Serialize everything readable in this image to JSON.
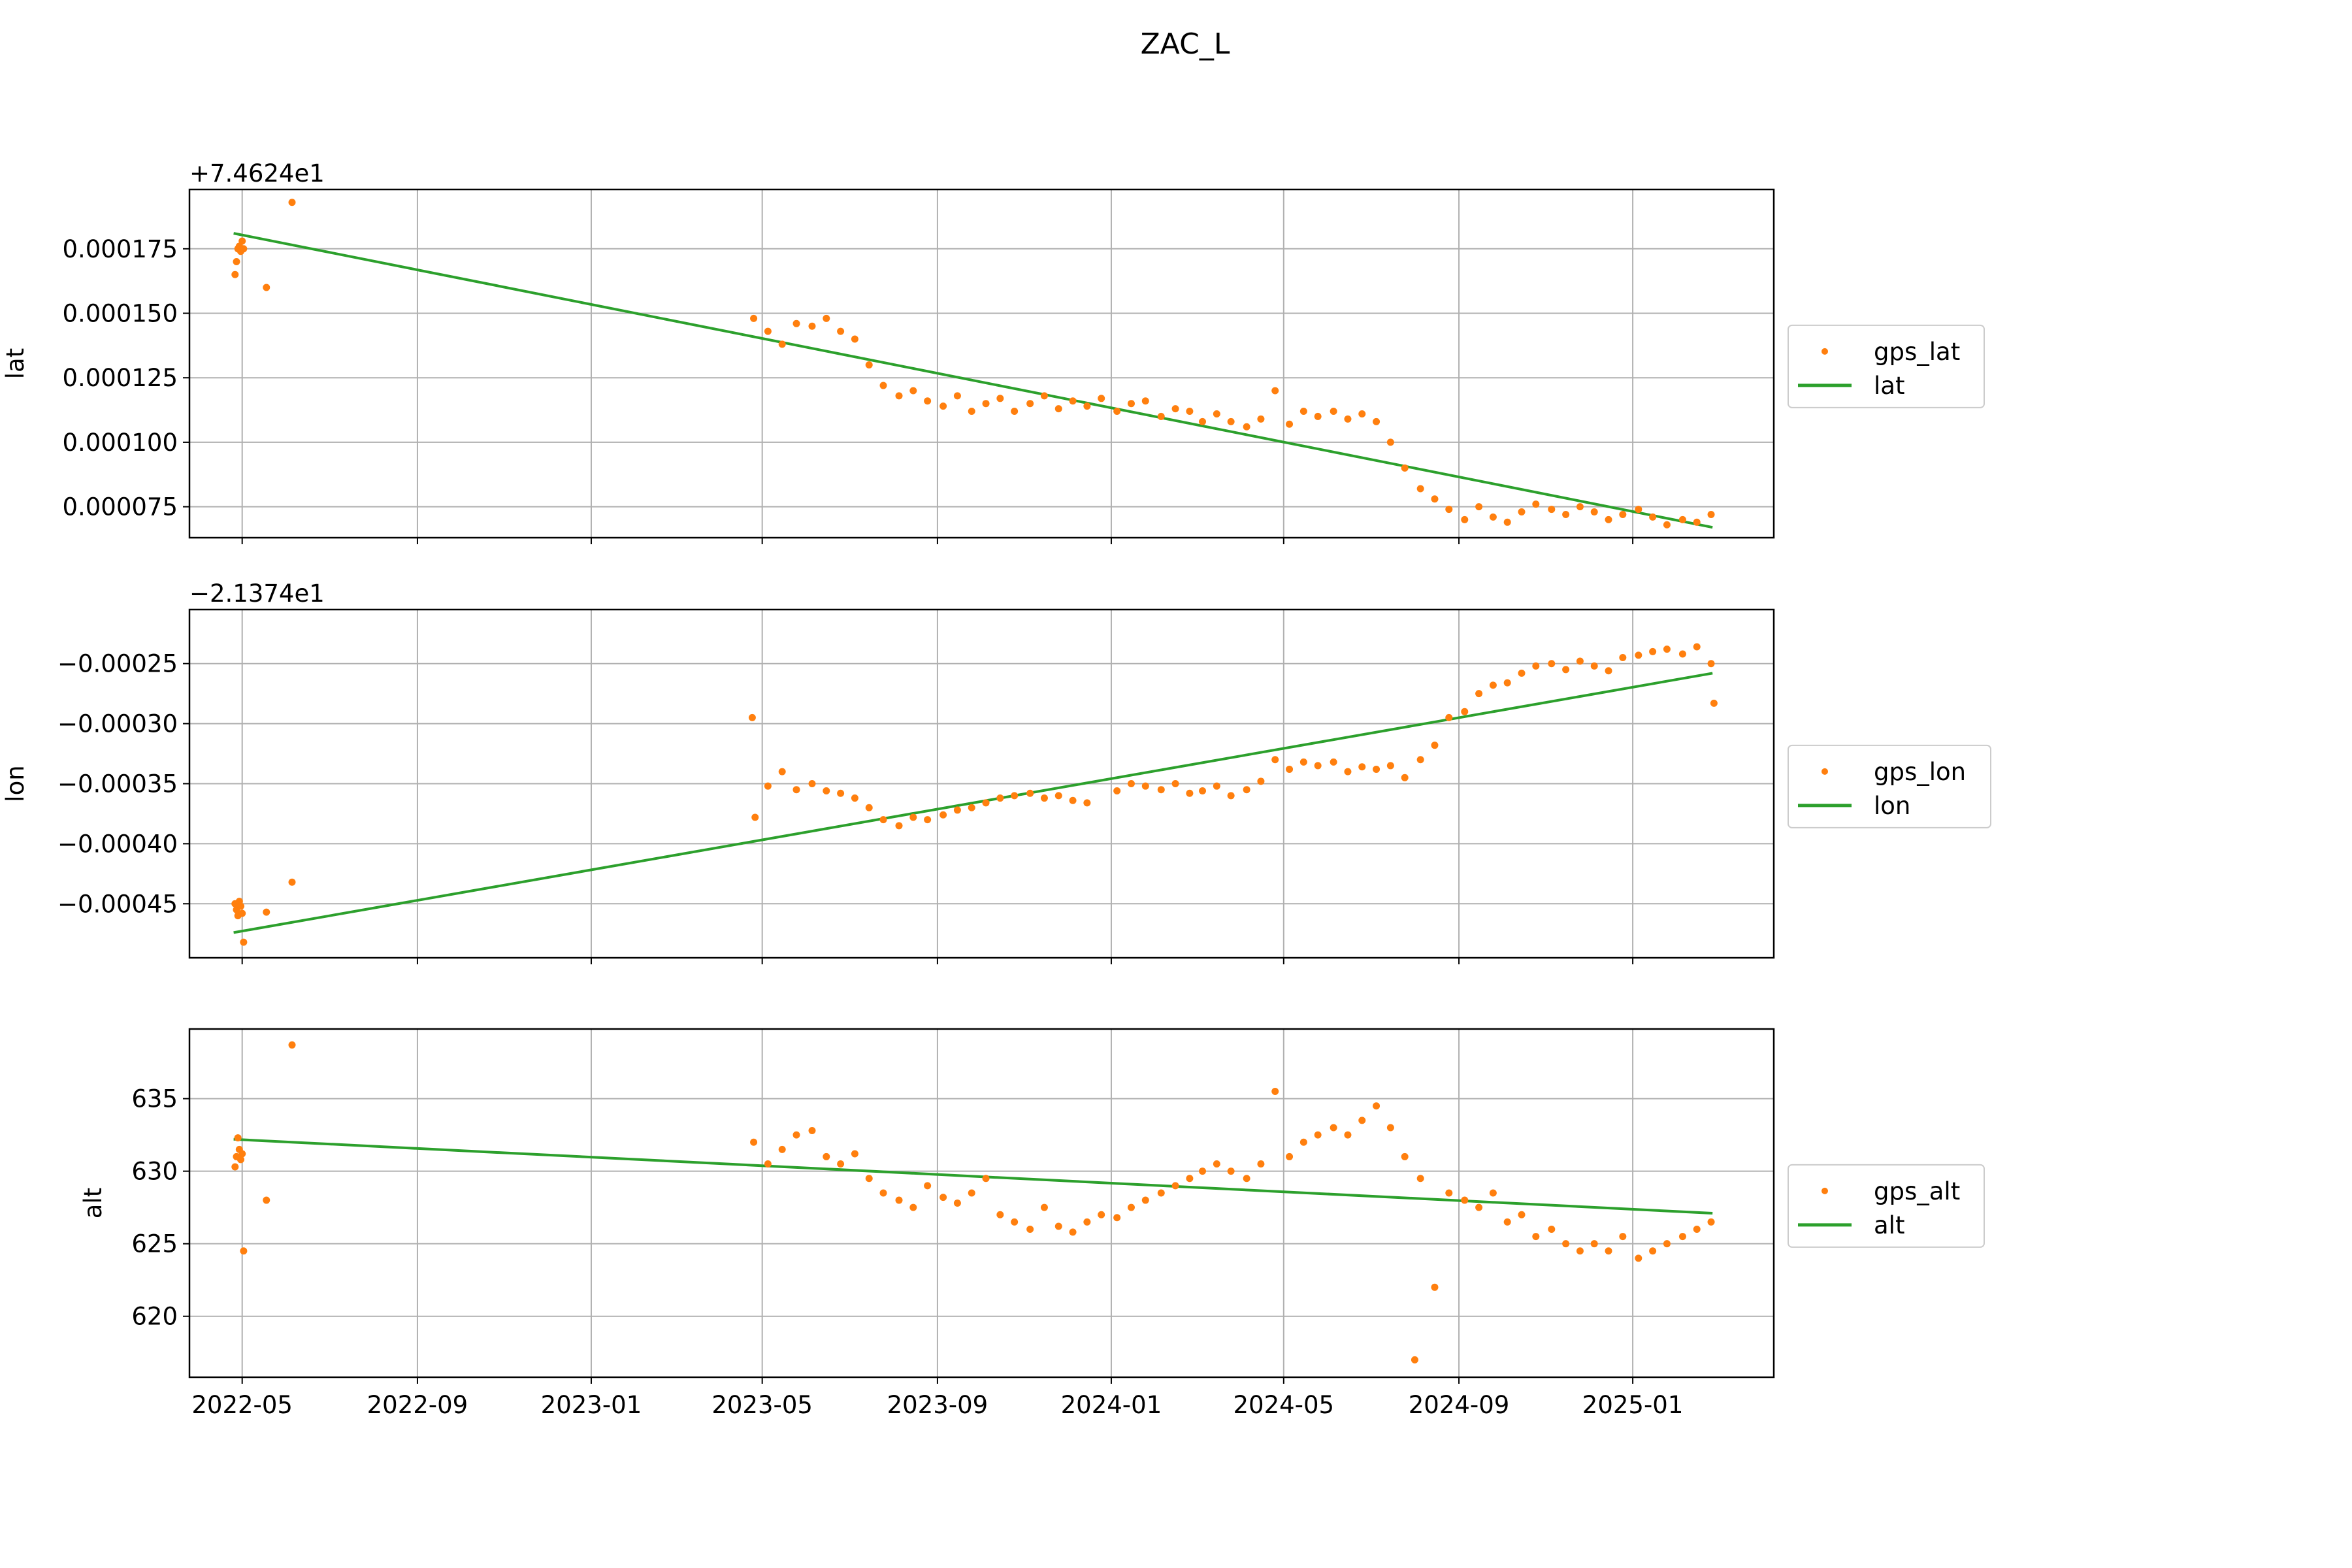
{
  "figure_title": "ZAC_L",
  "colors": {
    "points": "#ff7f0e",
    "trend": "#2ca02c",
    "grid": "#b0b0b0"
  },
  "x_axis": {
    "type": "date",
    "range": [
      "2022-03-25",
      "2025-04-10"
    ],
    "tick_labels": [
      "2022-05",
      "2022-09",
      "2023-01",
      "2023-05",
      "2023-09",
      "2024-01",
      "2024-05",
      "2024-09",
      "2025-01"
    ],
    "tick_dates": [
      "2022-05-01",
      "2022-09-01",
      "2023-01-01",
      "2023-05-01",
      "2023-09-01",
      "2024-01-01",
      "2024-05-01",
      "2024-09-01",
      "2025-01-01"
    ]
  },
  "chart_data": [
    {
      "type": "scatter",
      "ylabel": "lat",
      "offset_text": "+7.4624e1",
      "ylim": [
        6.3e-05,
        0.000198
      ],
      "y_ticks": [
        7.5e-05,
        0.0001,
        0.000125,
        0.00015,
        0.000175
      ],
      "y_tick_labels": [
        "0.000075",
        "0.000100",
        "0.000125",
        "0.000150",
        "0.000175"
      ],
      "legend": {
        "placement": "right",
        "points_label": "gps_lat",
        "line_label": "lat"
      },
      "points": [
        [
          "2022-04-26",
          0.000165
        ],
        [
          "2022-04-27",
          0.00017
        ],
        [
          "2022-04-28",
          0.000175
        ],
        [
          "2022-04-29",
          0.000176
        ],
        [
          "2022-04-30",
          0.000174
        ],
        [
          "2022-05-01",
          0.000178
        ],
        [
          "2022-05-02",
          0.000175
        ],
        [
          "2022-05-18",
          0.00016
        ],
        [
          "2022-06-05",
          0.000193
        ],
        [
          "2023-04-25",
          0.000148
        ],
        [
          "2023-05-05",
          0.000143
        ],
        [
          "2023-05-15",
          0.000138
        ],
        [
          "2023-05-25",
          0.000146
        ],
        [
          "2023-06-05",
          0.000145
        ],
        [
          "2023-06-15",
          0.000148
        ],
        [
          "2023-06-25",
          0.000143
        ],
        [
          "2023-07-05",
          0.00014
        ],
        [
          "2023-07-15",
          0.00013
        ],
        [
          "2023-07-25",
          0.000122
        ],
        [
          "2023-08-05",
          0.000118
        ],
        [
          "2023-08-15",
          0.00012
        ],
        [
          "2023-08-25",
          0.000116
        ],
        [
          "2023-09-05",
          0.000114
        ],
        [
          "2023-09-15",
          0.000118
        ],
        [
          "2023-09-25",
          0.000112
        ],
        [
          "2023-10-05",
          0.000115
        ],
        [
          "2023-10-15",
          0.000117
        ],
        [
          "2023-10-25",
          0.000112
        ],
        [
          "2023-11-05",
          0.000115
        ],
        [
          "2023-11-15",
          0.000118
        ],
        [
          "2023-11-25",
          0.000113
        ],
        [
          "2023-12-05",
          0.000116
        ],
        [
          "2023-12-15",
          0.000114
        ],
        [
          "2023-12-25",
          0.000117
        ],
        [
          "2024-01-05",
          0.000112
        ],
        [
          "2024-01-15",
          0.000115
        ],
        [
          "2024-01-25",
          0.000116
        ],
        [
          "2024-02-05",
          0.00011
        ],
        [
          "2024-02-15",
          0.000113
        ],
        [
          "2024-02-25",
          0.000112
        ],
        [
          "2024-03-05",
          0.000108
        ],
        [
          "2024-03-15",
          0.000111
        ],
        [
          "2024-03-25",
          0.000108
        ],
        [
          "2024-04-05",
          0.000106
        ],
        [
          "2024-04-15",
          0.000109
        ],
        [
          "2024-04-25",
          0.00012
        ],
        [
          "2024-05-05",
          0.000107
        ],
        [
          "2024-05-15",
          0.000112
        ],
        [
          "2024-05-25",
          0.00011
        ],
        [
          "2024-06-05",
          0.000112
        ],
        [
          "2024-06-15",
          0.000109
        ],
        [
          "2024-06-25",
          0.000111
        ],
        [
          "2024-07-05",
          0.000108
        ],
        [
          "2024-07-15",
          0.0001
        ],
        [
          "2024-07-25",
          9e-05
        ],
        [
          "2024-08-05",
          8.2e-05
        ],
        [
          "2024-08-15",
          7.8e-05
        ],
        [
          "2024-08-25",
          7.4e-05
        ],
        [
          "2024-09-05",
          7e-05
        ],
        [
          "2024-09-15",
          7.5e-05
        ],
        [
          "2024-09-25",
          7.1e-05
        ],
        [
          "2024-10-05",
          6.9e-05
        ],
        [
          "2024-10-15",
          7.3e-05
        ],
        [
          "2024-10-25",
          7.6e-05
        ],
        [
          "2024-11-05",
          7.4e-05
        ],
        [
          "2024-11-15",
          7.2e-05
        ],
        [
          "2024-11-25",
          7.5e-05
        ],
        [
          "2024-12-05",
          7.3e-05
        ],
        [
          "2024-12-15",
          7e-05
        ],
        [
          "2024-12-25",
          7.2e-05
        ],
        [
          "2025-01-05",
          7.4e-05
        ],
        [
          "2025-01-15",
          7.1e-05
        ],
        [
          "2025-01-25",
          6.8e-05
        ],
        [
          "2025-02-05",
          7e-05
        ],
        [
          "2025-02-15",
          6.9e-05
        ],
        [
          "2025-02-25",
          7.2e-05
        ]
      ],
      "trend": {
        "start": [
          "2022-04-25",
          0.000181
        ],
        "end": [
          "2025-02-26",
          6.7e-05
        ]
      }
    },
    {
      "type": "scatter",
      "ylabel": "lon",
      "offset_text": "−2.1374e1",
      "ylim": [
        -0.000495,
        -0.000205
      ],
      "y_ticks": [
        -0.00045,
        -0.0004,
        -0.00035,
        -0.0003,
        -0.00025
      ],
      "y_tick_labels": [
        "−0.00045",
        "−0.00040",
        "−0.00035",
        "−0.00030",
        "−0.00025"
      ],
      "legend": {
        "placement": "right",
        "points_label": "gps_lon",
        "line_label": "lon"
      },
      "points": [
        [
          "2022-04-26",
          -0.00045
        ],
        [
          "2022-04-27",
          -0.000455
        ],
        [
          "2022-04-28",
          -0.00046
        ],
        [
          "2022-04-29",
          -0.000448
        ],
        [
          "2022-04-30",
          -0.000452
        ],
        [
          "2022-05-01",
          -0.000458
        ],
        [
          "2022-05-02",
          -0.000482
        ],
        [
          "2022-05-18",
          -0.000457
        ],
        [
          "2022-06-05",
          -0.000432
        ],
        [
          "2023-04-24",
          -0.000295
        ],
        [
          "2023-04-26",
          -0.000378
        ],
        [
          "2023-05-05",
          -0.000352
        ],
        [
          "2023-05-15",
          -0.00034
        ],
        [
          "2023-05-25",
          -0.000355
        ],
        [
          "2023-06-05",
          -0.00035
        ],
        [
          "2023-06-15",
          -0.000356
        ],
        [
          "2023-06-25",
          -0.000358
        ],
        [
          "2023-07-05",
          -0.000362
        ],
        [
          "2023-07-15",
          -0.00037
        ],
        [
          "2023-07-25",
          -0.00038
        ],
        [
          "2023-08-05",
          -0.000385
        ],
        [
          "2023-08-15",
          -0.000378
        ],
        [
          "2023-08-25",
          -0.00038
        ],
        [
          "2023-09-05",
          -0.000376
        ],
        [
          "2023-09-15",
          -0.000372
        ],
        [
          "2023-09-25",
          -0.00037
        ],
        [
          "2023-10-05",
          -0.000366
        ],
        [
          "2023-10-15",
          -0.000362
        ],
        [
          "2023-10-25",
          -0.00036
        ],
        [
          "2023-11-05",
          -0.000358
        ],
        [
          "2023-11-15",
          -0.000362
        ],
        [
          "2023-11-25",
          -0.00036
        ],
        [
          "2023-12-05",
          -0.000364
        ],
        [
          "2023-12-15",
          -0.000366
        ],
        [
          "2024-01-05",
          -0.000356
        ],
        [
          "2024-01-15",
          -0.00035
        ],
        [
          "2024-01-25",
          -0.000352
        ],
        [
          "2024-02-05",
          -0.000355
        ],
        [
          "2024-02-15",
          -0.00035
        ],
        [
          "2024-02-25",
          -0.000358
        ],
        [
          "2024-03-05",
          -0.000356
        ],
        [
          "2024-03-15",
          -0.000352
        ],
        [
          "2024-03-25",
          -0.00036
        ],
        [
          "2024-04-05",
          -0.000355
        ],
        [
          "2024-04-15",
          -0.000348
        ],
        [
          "2024-04-25",
          -0.00033
        ],
        [
          "2024-05-05",
          -0.000338
        ],
        [
          "2024-05-15",
          -0.000332
        ],
        [
          "2024-05-25",
          -0.000335
        ],
        [
          "2024-06-05",
          -0.000332
        ],
        [
          "2024-06-15",
          -0.00034
        ],
        [
          "2024-06-25",
          -0.000336
        ],
        [
          "2024-07-05",
          -0.000338
        ],
        [
          "2024-07-15",
          -0.000335
        ],
        [
          "2024-07-25",
          -0.000345
        ],
        [
          "2024-08-05",
          -0.00033
        ],
        [
          "2024-08-15",
          -0.000318
        ],
        [
          "2024-08-25",
          -0.000295
        ],
        [
          "2024-09-05",
          -0.00029
        ],
        [
          "2024-09-15",
          -0.000275
        ],
        [
          "2024-09-25",
          -0.000268
        ],
        [
          "2024-10-05",
          -0.000266
        ],
        [
          "2024-10-15",
          -0.000258
        ],
        [
          "2024-10-25",
          -0.000252
        ],
        [
          "2024-11-05",
          -0.00025
        ],
        [
          "2024-11-15",
          -0.000255
        ],
        [
          "2024-11-25",
          -0.000248
        ],
        [
          "2024-12-05",
          -0.000252
        ],
        [
          "2024-12-15",
          -0.000256
        ],
        [
          "2024-12-25",
          -0.000245
        ],
        [
          "2025-01-05",
          -0.000243
        ],
        [
          "2025-01-15",
          -0.00024
        ],
        [
          "2025-01-25",
          -0.000238
        ],
        [
          "2025-02-05",
          -0.000242
        ],
        [
          "2025-02-15",
          -0.000236
        ],
        [
          "2025-02-25",
          -0.00025
        ],
        [
          "2025-02-27",
          -0.000283
        ]
      ],
      "trend": {
        "start": [
          "2022-04-25",
          -0.000474
        ],
        "end": [
          "2025-02-26",
          -0.000258
        ]
      }
    },
    {
      "type": "scatter",
      "ylabel": "alt",
      "offset_text": "",
      "ylim": [
        615.8,
        639.8
      ],
      "y_ticks": [
        620,
        625,
        630,
        635
      ],
      "y_tick_labels": [
        "620",
        "625",
        "630",
        "635"
      ],
      "legend": {
        "placement": "right",
        "points_label": "gps_alt",
        "line_label": "alt"
      },
      "points": [
        [
          "2022-04-26",
          630.3
        ],
        [
          "2022-04-27",
          631.0
        ],
        [
          "2022-04-28",
          632.3
        ],
        [
          "2022-04-29",
          631.5
        ],
        [
          "2022-04-30",
          630.8
        ],
        [
          "2022-05-01",
          631.2
        ],
        [
          "2022-05-02",
          624.5
        ],
        [
          "2022-05-18",
          628.0
        ],
        [
          "2022-06-05",
          638.7
        ],
        [
          "2023-04-25",
          632.0
        ],
        [
          "2023-05-05",
          630.5
        ],
        [
          "2023-05-15",
          631.5
        ],
        [
          "2023-05-25",
          632.5
        ],
        [
          "2023-06-05",
          632.8
        ],
        [
          "2023-06-15",
          631.0
        ],
        [
          "2023-06-25",
          630.5
        ],
        [
          "2023-07-05",
          631.2
        ],
        [
          "2023-07-15",
          629.5
        ],
        [
          "2023-07-25",
          628.5
        ],
        [
          "2023-08-05",
          628.0
        ],
        [
          "2023-08-15",
          627.5
        ],
        [
          "2023-08-25",
          629.0
        ],
        [
          "2023-09-05",
          628.2
        ],
        [
          "2023-09-15",
          627.8
        ],
        [
          "2023-09-25",
          628.5
        ],
        [
          "2023-10-05",
          629.5
        ],
        [
          "2023-10-15",
          627.0
        ],
        [
          "2023-10-25",
          626.5
        ],
        [
          "2023-11-05",
          626.0
        ],
        [
          "2023-11-15",
          627.5
        ],
        [
          "2023-11-25",
          626.2
        ],
        [
          "2023-12-05",
          625.8
        ],
        [
          "2023-12-15",
          626.5
        ],
        [
          "2023-12-25",
          627.0
        ],
        [
          "2024-01-05",
          626.8
        ],
        [
          "2024-01-15",
          627.5
        ],
        [
          "2024-01-25",
          628.0
        ],
        [
          "2024-02-05",
          628.5
        ],
        [
          "2024-02-15",
          629.0
        ],
        [
          "2024-02-25",
          629.5
        ],
        [
          "2024-03-05",
          630.0
        ],
        [
          "2024-03-15",
          630.5
        ],
        [
          "2024-03-25",
          630.0
        ],
        [
          "2024-04-05",
          629.5
        ],
        [
          "2024-04-15",
          630.5
        ],
        [
          "2024-04-25",
          635.5
        ],
        [
          "2024-05-05",
          631.0
        ],
        [
          "2024-05-15",
          632.0
        ],
        [
          "2024-05-25",
          632.5
        ],
        [
          "2024-06-05",
          633.0
        ],
        [
          "2024-06-15",
          632.5
        ],
        [
          "2024-06-25",
          633.5
        ],
        [
          "2024-07-05",
          634.5
        ],
        [
          "2024-07-15",
          633.0
        ],
        [
          "2024-07-25",
          631.0
        ],
        [
          "2024-08-01",
          617.0
        ],
        [
          "2024-08-05",
          629.5
        ],
        [
          "2024-08-15",
          622.0
        ],
        [
          "2024-08-25",
          628.5
        ],
        [
          "2024-09-05",
          628.0
        ],
        [
          "2024-09-15",
          627.5
        ],
        [
          "2024-09-25",
          628.5
        ],
        [
          "2024-10-05",
          626.5
        ],
        [
          "2024-10-15",
          627.0
        ],
        [
          "2024-10-25",
          625.5
        ],
        [
          "2024-11-05",
          626.0
        ],
        [
          "2024-11-15",
          625.0
        ],
        [
          "2024-11-25",
          624.5
        ],
        [
          "2024-12-05",
          625.0
        ],
        [
          "2024-12-15",
          624.5
        ],
        [
          "2024-12-25",
          625.5
        ],
        [
          "2025-01-05",
          624.0
        ],
        [
          "2025-01-15",
          624.5
        ],
        [
          "2025-01-25",
          625.0
        ],
        [
          "2025-02-05",
          625.5
        ],
        [
          "2025-02-15",
          626.0
        ],
        [
          "2025-02-25",
          626.5
        ]
      ],
      "trend": {
        "start": [
          "2022-04-25",
          632.2
        ],
        "end": [
          "2025-02-26",
          627.1
        ]
      }
    }
  ]
}
